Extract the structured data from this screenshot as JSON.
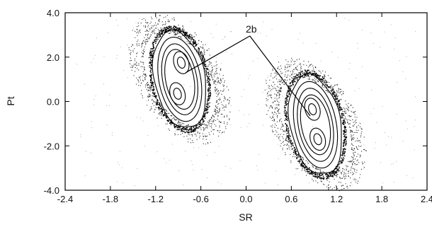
{
  "chart_data": {
    "type": "scatter",
    "xlabel": "SR",
    "ylabel": "Pt",
    "xlim": [
      -2.4,
      2.4
    ],
    "ylim": [
      -4.0,
      4.0
    ],
    "xticks": [
      "-2.4",
      "-1.8",
      "-1.2",
      "-0.6",
      "0.0",
      "0.6",
      "1.2",
      "1.8",
      "2.4"
    ],
    "yticks": [
      "4.0",
      "2.0",
      "0.0",
      "-2.0",
      "-4.0"
    ],
    "grid": false,
    "annotation": {
      "text": "2b",
      "anchor": [
        0.05,
        2.95
      ],
      "targets": [
        [
          -0.8,
          1.3
        ],
        [
          0.85,
          -0.65
        ]
      ]
    },
    "islands": [
      {
        "name": "left island",
        "center": [
          -0.88,
          1.0
        ],
        "orbits": [
          {
            "semi_axes": [
              0.34,
              2.2
            ],
            "tilt": 2.5
          },
          {
            "semi_axes": [
              0.28,
              1.9
            ],
            "tilt": 2.5
          },
          {
            "semi_axes": [
              0.23,
              1.6
            ],
            "tilt": 2.5
          },
          {
            "semi_axes": [
              0.19,
              1.35
            ],
            "tilt": 2.5
          }
        ],
        "inner_orbits": [
          {
            "center": [
              -0.86,
              1.75
            ],
            "semi_axes": [
              0.1,
              0.5
            ]
          },
          {
            "center": [
              -0.86,
              1.75
            ],
            "semi_axes": [
              0.05,
              0.25
            ]
          },
          {
            "center": [
              -0.91,
              0.35
            ],
            "semi_axes": [
              0.1,
              0.5
            ]
          },
          {
            "center": [
              -0.91,
              0.35
            ],
            "semi_axes": [
              0.05,
              0.25
            ]
          }
        ],
        "chaotic_layer": {
          "semi_axes": [
            0.38,
            2.3
          ],
          "thickness": 0.1
        },
        "scatter_cloud": {
          "semi_axes": [
            0.55,
            2.7
          ]
        }
      },
      {
        "name": "right island",
        "center": [
          0.92,
          -1.05
        ],
        "orbits": [
          {
            "semi_axes": [
              0.34,
              2.25
            ],
            "tilt": 2.5
          },
          {
            "semi_axes": [
              0.28,
              1.95
            ],
            "tilt": 2.5
          },
          {
            "semi_axes": [
              0.23,
              1.65
            ],
            "tilt": 2.5
          },
          {
            "semi_axes": [
              0.19,
              1.35
            ],
            "tilt": 2.5
          }
        ],
        "inner_orbits": [
          {
            "center": [
              0.88,
              -0.35
            ],
            "semi_axes": [
              0.1,
              0.5
            ]
          },
          {
            "center": [
              0.88,
              -0.35
            ],
            "semi_axes": [
              0.05,
              0.25
            ]
          },
          {
            "center": [
              0.95,
              -1.7
            ],
            "semi_axes": [
              0.1,
              0.5
            ]
          },
          {
            "center": [
              0.95,
              -1.7
            ],
            "semi_axes": [
              0.05,
              0.25
            ]
          }
        ],
        "chaotic_layer": {
          "semi_axes": [
            0.38,
            2.35
          ],
          "thickness": 0.1
        },
        "scatter_cloud": {
          "semi_axes": [
            0.55,
            2.75
          ]
        }
      }
    ]
  }
}
